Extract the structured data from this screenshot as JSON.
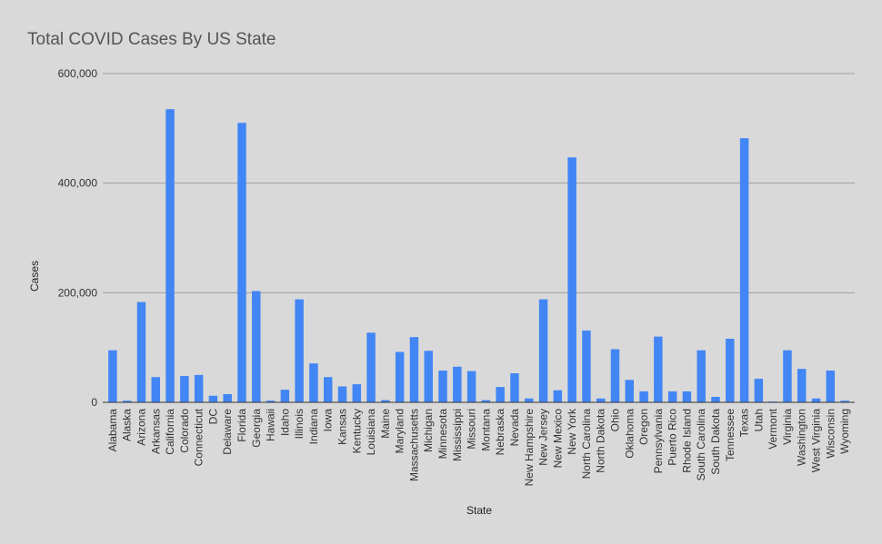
{
  "chart_data": {
    "type": "bar",
    "title": "Total COVID Cases By US State",
    "xlabel": "State",
    "ylabel": "Cases",
    "ylim": [
      0,
      600000
    ],
    "yticks": [
      0,
      200000,
      400000,
      600000
    ],
    "ytick_labels": [
      "0",
      "200,000",
      "400,000",
      "600,000"
    ],
    "grid": true,
    "legend": "none",
    "bar_color": "#4285f4",
    "categories": [
      "Alabama",
      "Alaska",
      "Arizona",
      "Arkansas",
      "California",
      "Colorado",
      "Connecticut",
      "DC",
      "Delaware",
      "Florida",
      "Georgia",
      "Hawaii",
      "Idaho",
      "Illinois",
      "Indiana",
      "Iowa",
      "Kansas",
      "Kentucky",
      "Louisiana",
      "Maine",
      "Maryland",
      "Massachusetts",
      "Michigan",
      "Minnesota",
      "Mississippi",
      "Missouri",
      "Montana",
      "Nebraska",
      "Nevada",
      "New Hampshire",
      "New Jersey",
      "New Mexico",
      "New York",
      "North Carolina",
      "North Dakota",
      "Ohio",
      "Oklahoma",
      "Oregon",
      "Pennsylvania",
      "Puerto Rico",
      "Rhode Island",
      "South Carolina",
      "South Dakota",
      "Tennessee",
      "Texas",
      "Utah",
      "Vermont",
      "Virginia",
      "Washington",
      "West Virginia",
      "Wisconsin",
      "Wyoming"
    ],
    "values": [
      95000,
      3000,
      183000,
      46000,
      535000,
      48000,
      50000,
      12000,
      15000,
      510000,
      203000,
      3000,
      23000,
      188000,
      71000,
      46000,
      29000,
      33000,
      127000,
      4000,
      92000,
      119000,
      94000,
      58000,
      65000,
      57000,
      4000,
      28000,
      53000,
      7000,
      188000,
      22000,
      447000,
      131000,
      7000,
      97000,
      41000,
      20000,
      120000,
      20000,
      20000,
      95000,
      10000,
      116000,
      482000,
      43000,
      1500,
      95000,
      61000,
      7000,
      58000,
      3000
    ]
  }
}
